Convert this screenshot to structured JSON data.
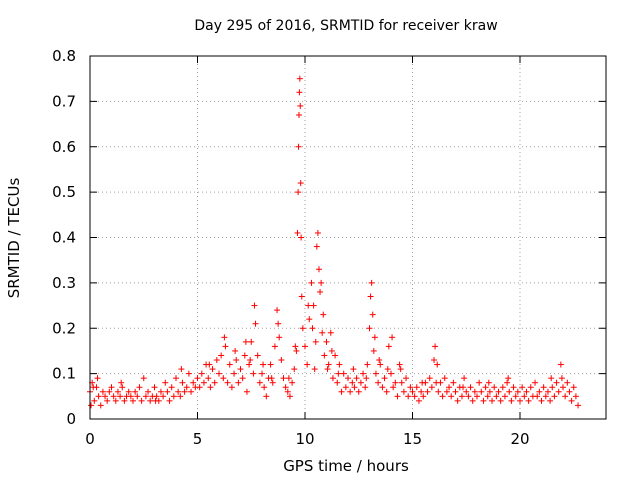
{
  "chart_data": {
    "type": "scatter",
    "title": "Day 295 of 2016, SRMTID for receiver kraw",
    "xlabel": "GPS time / hours",
    "ylabel": "SRMTID / TECUs",
    "xlim": [
      0,
      24
    ],
    "ylim": [
      0,
      0.8
    ],
    "x_ticks": [
      "0",
      "5",
      "10",
      "15",
      "20"
    ],
    "y_ticks": [
      "0",
      "0.1",
      "0.2",
      "0.3",
      "0.4",
      "0.5",
      "0.6",
      "0.7",
      "0.8"
    ],
    "grid": true,
    "marker": "+",
    "color": "#ff0000",
    "series": [
      {
        "points": [
          [
            0.0,
            0.06
          ],
          [
            0.1,
            0.08
          ],
          [
            0.2,
            0.04
          ],
          [
            0.3,
            0.07
          ],
          [
            0.4,
            0.05
          ],
          [
            0.5,
            0.03
          ],
          [
            0.6,
            0.06
          ],
          [
            0.7,
            0.05
          ],
          [
            0.8,
            0.04
          ],
          [
            0.9,
            0.06
          ],
          [
            1.0,
            0.07
          ],
          [
            1.1,
            0.05
          ],
          [
            1.2,
            0.04
          ],
          [
            1.3,
            0.06
          ],
          [
            1.4,
            0.05
          ],
          [
            1.5,
            0.07
          ],
          [
            1.6,
            0.04
          ],
          [
            1.7,
            0.05
          ],
          [
            1.8,
            0.06
          ],
          [
            1.9,
            0.05
          ],
          [
            2.0,
            0.04
          ],
          [
            2.1,
            0.06
          ],
          [
            2.2,
            0.05
          ],
          [
            2.3,
            0.07
          ],
          [
            2.4,
            0.04
          ],
          [
            2.5,
            0.09
          ],
          [
            2.6,
            0.05
          ],
          [
            2.7,
            0.06
          ],
          [
            2.8,
            0.04
          ],
          [
            2.9,
            0.05
          ],
          [
            3.0,
            0.07
          ],
          [
            3.1,
            0.05
          ],
          [
            3.2,
            0.04
          ],
          [
            3.3,
            0.06
          ],
          [
            3.4,
            0.05
          ],
          [
            3.5,
            0.08
          ],
          [
            3.6,
            0.06
          ],
          [
            3.7,
            0.04
          ],
          [
            3.8,
            0.07
          ],
          [
            3.9,
            0.05
          ],
          [
            4.0,
            0.09
          ],
          [
            4.1,
            0.06
          ],
          [
            4.2,
            0.05
          ],
          [
            4.3,
            0.08
          ],
          [
            4.4,
            0.06
          ],
          [
            4.5,
            0.07
          ],
          [
            4.6,
            0.1
          ],
          [
            4.7,
            0.06
          ],
          [
            4.8,
            0.08
          ],
          [
            4.9,
            0.07
          ],
          [
            5.0,
            0.09
          ],
          [
            5.1,
            0.07
          ],
          [
            5.2,
            0.1
          ],
          [
            5.3,
            0.08
          ],
          [
            5.4,
            0.12
          ],
          [
            5.5,
            0.09
          ],
          [
            5.6,
            0.07
          ],
          [
            5.7,
            0.11
          ],
          [
            5.8,
            0.08
          ],
          [
            5.9,
            0.13
          ],
          [
            6.0,
            0.1
          ],
          [
            6.1,
            0.14
          ],
          [
            6.2,
            0.09
          ],
          [
            6.3,
            0.16
          ],
          [
            6.4,
            0.08
          ],
          [
            6.5,
            0.12
          ],
          [
            6.6,
            0.07
          ],
          [
            6.7,
            0.1
          ],
          [
            6.8,
            0.13
          ],
          [
            6.9,
            0.08
          ],
          [
            7.0,
            0.11
          ],
          [
            7.1,
            0.09
          ],
          [
            7.2,
            0.14
          ],
          [
            7.3,
            0.06
          ],
          [
            7.4,
            0.12
          ],
          [
            7.5,
            0.17
          ],
          [
            7.6,
            0.1
          ],
          [
            7.7,
            0.21
          ],
          [
            7.8,
            0.14
          ],
          [
            7.9,
            0.08
          ],
          [
            8.0,
            0.1
          ],
          [
            8.1,
            0.07
          ],
          [
            8.2,
            0.05
          ],
          [
            8.3,
            0.09
          ],
          [
            8.4,
            0.12
          ],
          [
            8.5,
            0.08
          ],
          [
            8.6,
            0.16
          ],
          [
            8.7,
            0.24
          ],
          [
            8.8,
            0.18
          ],
          [
            8.9,
            0.13
          ],
          [
            9.0,
            0.09
          ],
          [
            9.1,
            0.07
          ],
          [
            9.2,
            0.06
          ],
          [
            9.3,
            0.05
          ],
          [
            9.4,
            0.08
          ],
          [
            9.5,
            0.11
          ],
          [
            9.6,
            0.15
          ],
          [
            9.65,
            0.41
          ],
          [
            9.68,
            0.5
          ],
          [
            9.7,
            0.6
          ],
          [
            9.72,
            0.67
          ],
          [
            9.74,
            0.72
          ],
          [
            9.76,
            0.75
          ],
          [
            9.78,
            0.69
          ],
          [
            9.8,
            0.52
          ],
          [
            9.85,
            0.27
          ],
          [
            9.9,
            0.2
          ],
          [
            10.0,
            0.16
          ],
          [
            10.1,
            0.12
          ],
          [
            10.2,
            0.22
          ],
          [
            10.3,
            0.3
          ],
          [
            10.4,
            0.25
          ],
          [
            10.5,
            0.17
          ],
          [
            10.55,
            0.38
          ],
          [
            10.6,
            0.41
          ],
          [
            10.65,
            0.33
          ],
          [
            10.7,
            0.28
          ],
          [
            10.8,
            0.19
          ],
          [
            10.9,
            0.14
          ],
          [
            11.0,
            0.17
          ],
          [
            11.1,
            0.12
          ],
          [
            11.2,
            0.19
          ],
          [
            11.3,
            0.09
          ],
          [
            11.4,
            0.14
          ],
          [
            11.5,
            0.08
          ],
          [
            11.6,
            0.12
          ],
          [
            11.7,
            0.06
          ],
          [
            11.8,
            0.1
          ],
          [
            11.9,
            0.07
          ],
          [
            12.0,
            0.09
          ],
          [
            12.1,
            0.06
          ],
          [
            12.2,
            0.08
          ],
          [
            12.3,
            0.07
          ],
          [
            12.4,
            0.09
          ],
          [
            12.5,
            0.06
          ],
          [
            12.6,
            0.08
          ],
          [
            12.7,
            0.1
          ],
          [
            12.8,
            0.07
          ],
          [
            12.9,
            0.12
          ],
          [
            13.0,
            0.2
          ],
          [
            13.05,
            0.27
          ],
          [
            13.1,
            0.3
          ],
          [
            13.15,
            0.23
          ],
          [
            13.2,
            0.15
          ],
          [
            13.3,
            0.1
          ],
          [
            13.4,
            0.08
          ],
          [
            13.5,
            0.12
          ],
          [
            13.6,
            0.07
          ],
          [
            13.7,
            0.09
          ],
          [
            13.8,
            0.06
          ],
          [
            13.9,
            0.16
          ],
          [
            14.0,
            0.1
          ],
          [
            14.1,
            0.07
          ],
          [
            14.2,
            0.08
          ],
          [
            14.3,
            0.05
          ],
          [
            14.4,
            0.12
          ],
          [
            14.5,
            0.08
          ],
          [
            14.6,
            0.06
          ],
          [
            14.7,
            0.09
          ],
          [
            14.8,
            0.05
          ],
          [
            14.9,
            0.07
          ],
          [
            15.0,
            0.06
          ],
          [
            15.1,
            0.05
          ],
          [
            15.2,
            0.07
          ],
          [
            15.3,
            0.04
          ],
          [
            15.4,
            0.06
          ],
          [
            15.5,
            0.05
          ],
          [
            15.6,
            0.08
          ],
          [
            15.7,
            0.06
          ],
          [
            15.8,
            0.09
          ],
          [
            15.9,
            0.07
          ],
          [
            16.0,
            0.13
          ],
          [
            16.05,
            0.16
          ],
          [
            16.1,
            0.08
          ],
          [
            16.2,
            0.06
          ],
          [
            16.3,
            0.08
          ],
          [
            16.4,
            0.05
          ],
          [
            16.5,
            0.09
          ],
          [
            16.6,
            0.06
          ],
          [
            16.7,
            0.07
          ],
          [
            16.8,
            0.05
          ],
          [
            16.9,
            0.08
          ],
          [
            17.0,
            0.06
          ],
          [
            17.1,
            0.04
          ],
          [
            17.2,
            0.07
          ],
          [
            17.3,
            0.05
          ],
          [
            17.4,
            0.09
          ],
          [
            17.5,
            0.06
          ],
          [
            17.6,
            0.05
          ],
          [
            17.7,
            0.07
          ],
          [
            17.8,
            0.04
          ],
          [
            17.9,
            0.06
          ],
          [
            18.0,
            0.05
          ],
          [
            18.1,
            0.08
          ],
          [
            18.2,
            0.06
          ],
          [
            18.3,
            0.04
          ],
          [
            18.4,
            0.07
          ],
          [
            18.5,
            0.05
          ],
          [
            18.6,
            0.06
          ],
          [
            18.7,
            0.04
          ],
          [
            18.8,
            0.07
          ],
          [
            18.9,
            0.05
          ],
          [
            19.0,
            0.06
          ],
          [
            19.1,
            0.04
          ],
          [
            19.2,
            0.07
          ],
          [
            19.3,
            0.05
          ],
          [
            19.4,
            0.08
          ],
          [
            19.5,
            0.06
          ],
          [
            19.6,
            0.04
          ],
          [
            19.7,
            0.07
          ],
          [
            19.8,
            0.05
          ],
          [
            19.9,
            0.06
          ],
          [
            20.0,
            0.04
          ],
          [
            20.1,
            0.07
          ],
          [
            20.2,
            0.05
          ],
          [
            20.3,
            0.06
          ],
          [
            20.4,
            0.04
          ],
          [
            20.5,
            0.07
          ],
          [
            20.6,
            0.05
          ],
          [
            20.7,
            0.08
          ],
          [
            20.8,
            0.05
          ],
          [
            20.9,
            0.06
          ],
          [
            21.0,
            0.04
          ],
          [
            21.1,
            0.07
          ],
          [
            21.2,
            0.05
          ],
          [
            21.3,
            0.06
          ],
          [
            21.4,
            0.04
          ],
          [
            21.5,
            0.07
          ],
          [
            21.6,
            0.05
          ],
          [
            21.7,
            0.08
          ],
          [
            21.8,
            0.06
          ],
          [
            21.9,
            0.12
          ],
          [
            22.0,
            0.07
          ],
          [
            22.1,
            0.05
          ],
          [
            22.2,
            0.08
          ],
          [
            22.3,
            0.06
          ],
          [
            22.4,
            0.04
          ],
          [
            22.5,
            0.07
          ],
          [
            22.6,
            0.05
          ],
          [
            22.7,
            0.03
          ],
          [
            0.05,
            0.03
          ],
          [
            0.15,
            0.07
          ],
          [
            0.35,
            0.09
          ],
          [
            1.45,
            0.08
          ],
          [
            3.05,
            0.04
          ],
          [
            4.25,
            0.11
          ],
          [
            5.55,
            0.12
          ],
          [
            6.25,
            0.18
          ],
          [
            6.75,
            0.15
          ],
          [
            7.25,
            0.17
          ],
          [
            7.45,
            0.13
          ],
          [
            7.65,
            0.25
          ],
          [
            8.05,
            0.12
          ],
          [
            8.45,
            0.09
          ],
          [
            8.75,
            0.21
          ],
          [
            9.25,
            0.09
          ],
          [
            9.55,
            0.16
          ],
          [
            9.82,
            0.4
          ],
          [
            10.15,
            0.25
          ],
          [
            10.35,
            0.2
          ],
          [
            10.45,
            0.11
          ],
          [
            10.75,
            0.3
          ],
          [
            10.85,
            0.23
          ],
          [
            11.05,
            0.11
          ],
          [
            11.25,
            0.15
          ],
          [
            11.55,
            0.1
          ],
          [
            12.25,
            0.11
          ],
          [
            12.85,
            0.09
          ],
          [
            13.25,
            0.18
          ],
          [
            13.45,
            0.13
          ],
          [
            13.85,
            0.11
          ],
          [
            14.05,
            0.18
          ],
          [
            14.45,
            0.11
          ],
          [
            15.45,
            0.08
          ],
          [
            16.15,
            0.12
          ],
          [
            17.35,
            0.07
          ],
          [
            18.55,
            0.08
          ],
          [
            19.45,
            0.09
          ],
          [
            21.45,
            0.09
          ],
          [
            21.95,
            0.09
          ]
        ]
      }
    ]
  }
}
